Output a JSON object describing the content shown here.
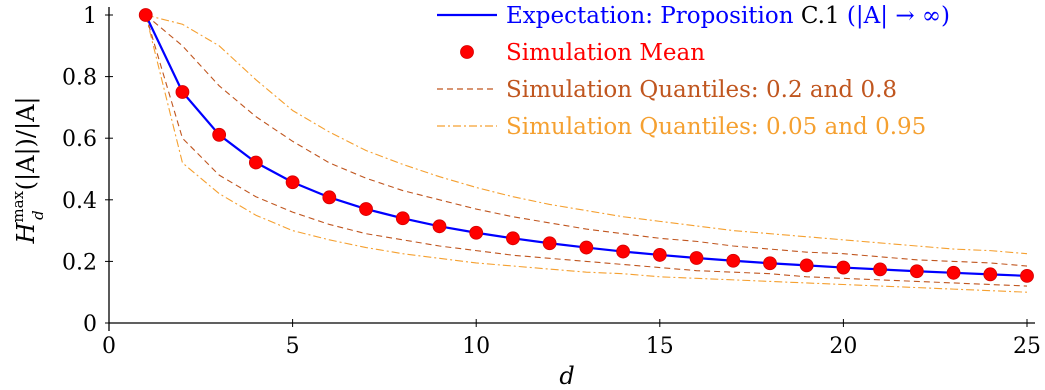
{
  "chart_data": {
    "type": "line",
    "title": "",
    "xlabel": "d",
    "ylabel": "H_d^max(|A|)/|A|",
    "ylabel_parts": {
      "base": "H",
      "sub": "d",
      "sup": "max",
      "rest": "(|A|)/|A|"
    },
    "xlim": [
      0,
      25
    ],
    "ylim": [
      0,
      1
    ],
    "x_ticks": [
      "0",
      "5",
      "10",
      "15",
      "20",
      "25"
    ],
    "y_ticks": [
      "0",
      "0.2",
      "0.4",
      "0.6",
      "0.8",
      "1"
    ],
    "grid": false,
    "legend_position": "top-right",
    "x": [
      1,
      2,
      3,
      4,
      5,
      6,
      7,
      8,
      9,
      10,
      11,
      12,
      13,
      14,
      15,
      16,
      17,
      18,
      19,
      20,
      21,
      22,
      23,
      24,
      25
    ],
    "series": [
      {
        "name": "Expectation: Proposition C.1 (|A| → ∞)",
        "legend_parts": [
          "Expectation: Proposition ",
          "C.1",
          " (|A| → ∞)"
        ],
        "style": "solid",
        "color": "#0000ff",
        "values": [
          1.0,
          0.75,
          0.611,
          0.521,
          0.457,
          0.408,
          0.37,
          0.34,
          0.314,
          0.293,
          0.275,
          0.259,
          0.245,
          0.232,
          0.221,
          0.211,
          0.202,
          0.194,
          0.187,
          0.18,
          0.174,
          0.168,
          0.163,
          0.158,
          0.153
        ]
      },
      {
        "name": "Simulation Mean",
        "style": "markers",
        "color": "#ff0000",
        "values": [
          1.0,
          0.75,
          0.611,
          0.521,
          0.457,
          0.408,
          0.37,
          0.34,
          0.314,
          0.293,
          0.275,
          0.259,
          0.245,
          0.232,
          0.221,
          0.211,
          0.202,
          0.194,
          0.187,
          0.18,
          0.174,
          0.168,
          0.163,
          0.158,
          0.153
        ]
      },
      {
        "name": "Simulation Quantiles: 0.2 and 0.8",
        "style": "dashed",
        "color": "#c0561f",
        "lower": [
          1.0,
          0.6,
          0.48,
          0.41,
          0.36,
          0.32,
          0.29,
          0.27,
          0.25,
          0.235,
          0.22,
          0.21,
          0.2,
          0.19,
          0.18,
          0.17,
          0.165,
          0.16,
          0.15,
          0.145,
          0.14,
          0.135,
          0.13,
          0.125,
          0.12
        ],
        "upper": [
          1.0,
          0.9,
          0.77,
          0.67,
          0.59,
          0.52,
          0.47,
          0.43,
          0.4,
          0.37,
          0.345,
          0.325,
          0.305,
          0.29,
          0.275,
          0.265,
          0.25,
          0.24,
          0.23,
          0.225,
          0.215,
          0.205,
          0.2,
          0.195,
          0.185
        ]
      },
      {
        "name": "Simulation Quantiles: 0.05 and 0.95",
        "style": "dashdot",
        "color": "#f5a030",
        "lower": [
          1.0,
          0.52,
          0.42,
          0.35,
          0.3,
          0.27,
          0.245,
          0.225,
          0.21,
          0.195,
          0.185,
          0.175,
          0.165,
          0.16,
          0.15,
          0.145,
          0.14,
          0.135,
          0.13,
          0.125,
          0.12,
          0.115,
          0.11,
          0.105,
          0.1
        ],
        "upper": [
          1.0,
          0.97,
          0.9,
          0.79,
          0.69,
          0.62,
          0.56,
          0.515,
          0.475,
          0.44,
          0.41,
          0.385,
          0.365,
          0.345,
          0.33,
          0.315,
          0.3,
          0.29,
          0.28,
          0.27,
          0.26,
          0.25,
          0.24,
          0.235,
          0.225
        ]
      }
    ]
  }
}
